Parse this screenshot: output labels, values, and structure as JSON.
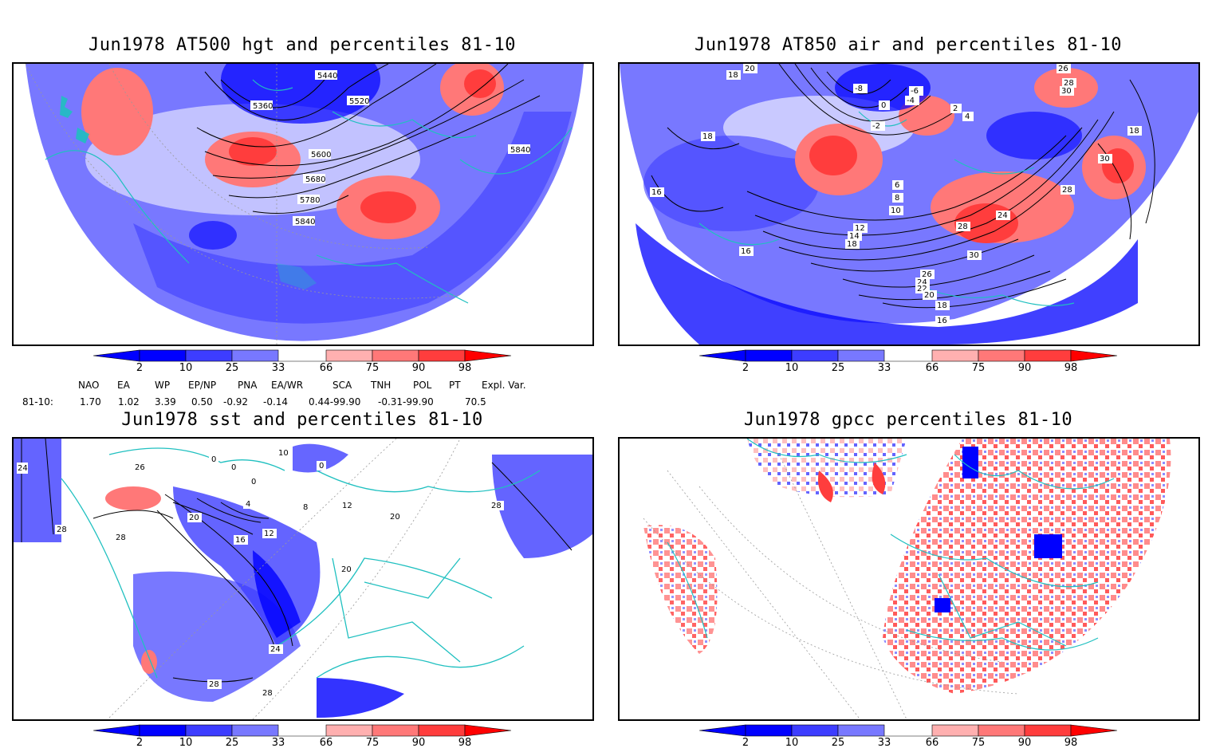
{
  "panels": [
    {
      "title": "Jun1978 AT500 hgt and percentiles 81-10",
      "contour_labels": [
        "5440",
        "5520",
        "5360",
        "5600",
        "5680",
        "5780",
        "5840",
        "5840"
      ]
    },
    {
      "title": "Jun1978 AT850 air and percentiles 81-10",
      "contour_labels": [
        "20",
        "18",
        "-8",
        "-6",
        "-4",
        "-2",
        "0",
        "2",
        "4",
        "26",
        "28",
        "30",
        "18",
        "18",
        "16",
        "6",
        "8",
        "10",
        "12",
        "14",
        "18",
        "24",
        "28",
        "30",
        "26",
        "24",
        "22",
        "20",
        "18",
        "16",
        "30",
        "28",
        "16"
      ]
    },
    {
      "title": "Jun1978 sst and percentiles 81-10",
      "contour_labels": [
        "24",
        "26",
        "28",
        "0",
        "0",
        "0",
        "4",
        "10",
        "8",
        "12",
        "16",
        "20",
        "20",
        "28",
        "24",
        "28",
        "28",
        "28",
        "20",
        "12",
        "0"
      ]
    },
    {
      "title": "Jun1978 gpcc percentiles 81-10",
      "contour_labels": []
    }
  ],
  "colorbar": {
    "labels": [
      "2",
      "10",
      "25",
      "33",
      "66",
      "75",
      "90",
      "98"
    ],
    "colors": {
      "blue_dark": "#0000ff",
      "blue_mid": "#3d3dff",
      "blue_light": "#7878ff",
      "blue_pale": "#b0b0ff",
      "red_pale": "#ffb0b0",
      "red_light": "#ff7878",
      "red_mid": "#ff3d3d",
      "red_dark": "#ff0000"
    }
  },
  "indices": {
    "header": [
      "NAO",
      "EA",
      "WP",
      "EP/NP",
      "PNA",
      "EA/WR",
      "SCA",
      "TNH",
      "POL",
      "PT",
      "Expl. Var."
    ],
    "row_label": "81-10:",
    "values": [
      "1.70",
      "1.02",
      "3.39",
      "0.50",
      "-0.92",
      "-0.14",
      "0.44-99.90",
      "-0.31-99.90",
      "70.5"
    ]
  },
  "map_colors": {
    "coast": "#20c0c0",
    "grid": "#999999",
    "contour": "#000000"
  }
}
